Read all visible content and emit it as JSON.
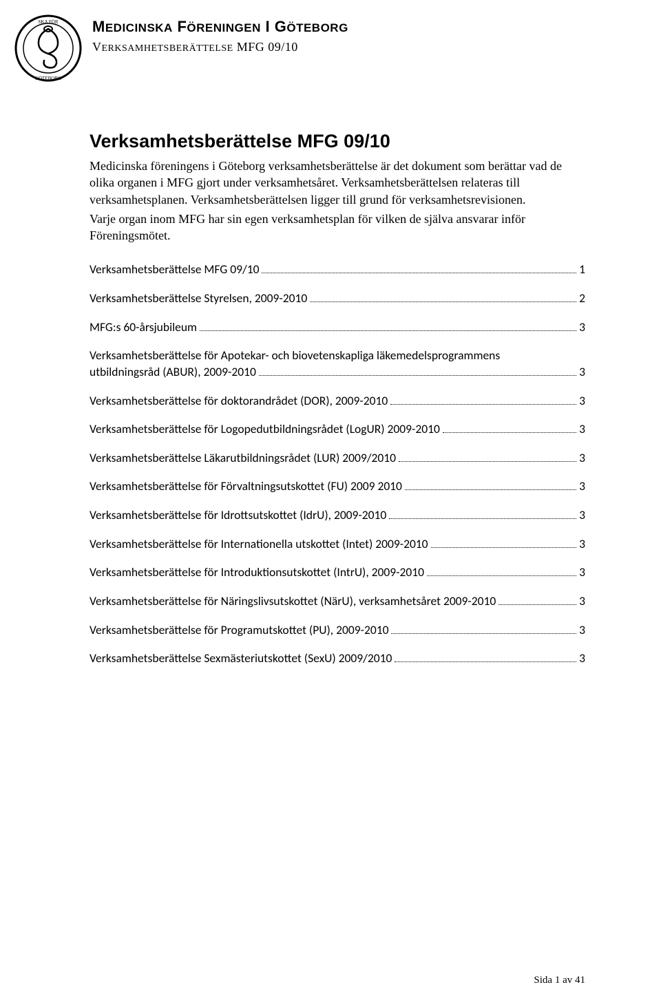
{
  "header": {
    "org_name_parts": [
      "M",
      "EDICINSKA",
      " F",
      "ÖRENINGEN",
      " ",
      "I",
      " G",
      "ÖTEBORG"
    ],
    "subtitle_parts": [
      "V",
      "ERKSAMHETSBERÄTTELSE",
      " MFG 09/10"
    ]
  },
  "title": "Verksamhetsberättelse MFG 09/10",
  "intro": [
    "Medicinska föreningens i Göteborg verksamhetsberättelse är det dokument som berättar vad de olika organen i MFG gjort under verksamhetsåret. Verksamhetsberättelsen relateras till verksamhetsplanen. Verksamhetsberättelsen ligger till grund för verksamhetsrevisionen.",
    "Varje organ inom MFG har sin egen verksamhetsplan för vilken de själva ansvarar inför Föreningsmötet."
  ],
  "toc": [
    {
      "label": "Verksamhetsberättelse MFG 09/10",
      "page": "1"
    },
    {
      "label": "Verksamhetsberättelse Styrelsen, 2009-2010",
      "page": "2"
    },
    {
      "label": "MFG:s 60-årsjubileum",
      "page": "3"
    },
    {
      "label": "Verksamhetsberättelse för Apotekar- och biovetenskapliga läkemedelsprogrammens utbildningsråd (ABUR), 2009-2010",
      "page": "3",
      "wrap": true,
      "line1": "Verksamhetsberättelse för Apotekar- och biovetenskapliga läkemedelsprogrammens",
      "line2": "utbildningsråd (ABUR), 2009-2010"
    },
    {
      "label": "Verksamhetsberättelse för doktorandrådet (DOR), 2009-2010",
      "page": "3"
    },
    {
      "label": "Verksamhetsberättelse för Logopedutbildningsrådet (LogUR) 2009-2010",
      "page": "3"
    },
    {
      "label": "Verksamhetsberättelse Läkarutbildningsrådet (LUR) 2009/2010",
      "page": "3"
    },
    {
      "label": "Verksamhetsberättelse för Förvaltningsutskottet (FU) 2009 2010",
      "page": "3"
    },
    {
      "label": "Verksamhetsberättelse för Idrottsutskottet (IdrU), 2009-2010",
      "page": "3"
    },
    {
      "label": "Verksamhetsberättelse för Internationella utskottet (Intet) 2009-2010",
      "page": "3"
    },
    {
      "label": "Verksamhetsberättelse för Introduktionsutskottet (IntrU), 2009-2010",
      "page": "3"
    },
    {
      "label": "Verksamhetsberättelse för Näringslivsutskottet (NärU), verksamhetsåret 2009-2010",
      "page": "3"
    },
    {
      "label": "Verksamhetsberättelse för Programutskottet (PU), 2009-2010",
      "page": "3"
    },
    {
      "label": "Verksamhetsberättelse Sexmästeriutskottet (SexU) 2009/2010",
      "page": "3"
    }
  ],
  "footer": "Sida 1 av 41",
  "colors": {
    "text": "#000000",
    "background": "#ffffff"
  }
}
